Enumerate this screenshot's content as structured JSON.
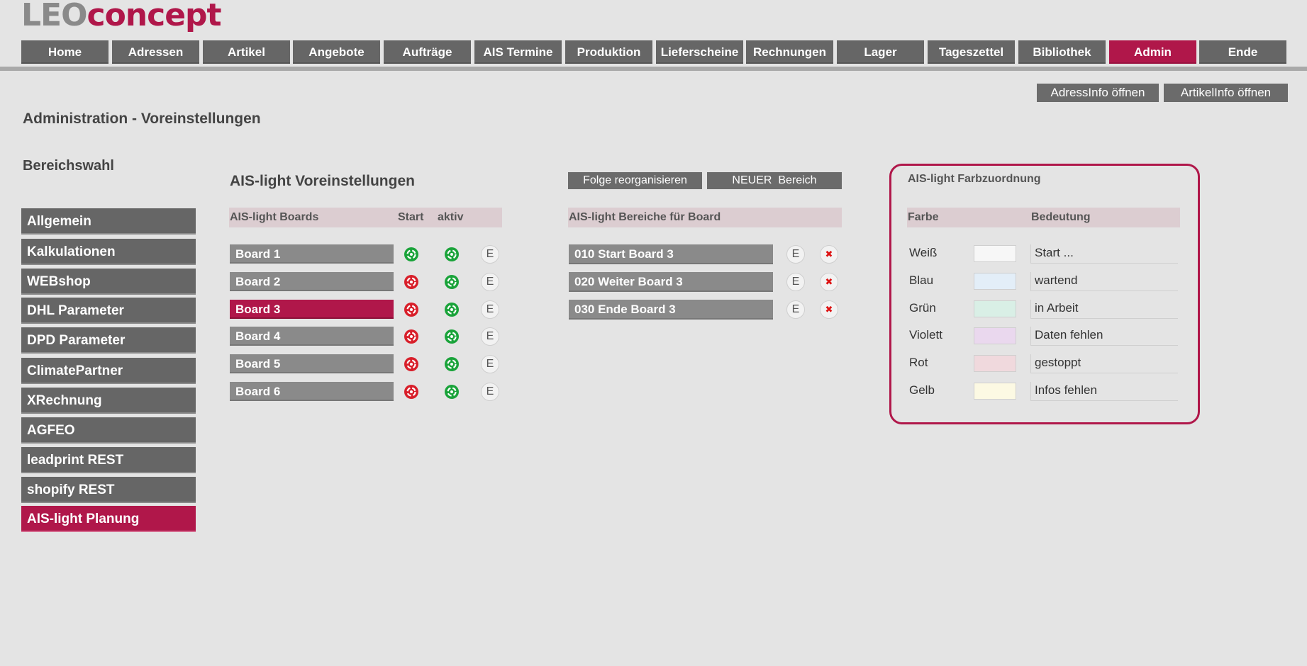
{
  "logo": {
    "part1": "LEO",
    "part2": "concept"
  },
  "nav": [
    {
      "label": "Home",
      "active": false
    },
    {
      "label": "Adressen",
      "active": false
    },
    {
      "label": "Artikel",
      "active": false
    },
    {
      "label": "Angebote",
      "active": false
    },
    {
      "label": "Aufträge",
      "active": false
    },
    {
      "label": "AIS Termine",
      "active": false
    },
    {
      "label": "Produktion",
      "active": false
    },
    {
      "label": "Lieferscheine",
      "active": false
    },
    {
      "label": "Rechnungen",
      "active": false
    },
    {
      "label": "Lager",
      "active": false
    },
    {
      "label": "Tageszettel",
      "active": false
    },
    {
      "label": "Bibliothek",
      "active": false
    },
    {
      "label": "Admin",
      "active": true
    },
    {
      "label": "Ende",
      "active": false
    }
  ],
  "info_buttons": {
    "adress": "AdressInfo öffnen",
    "artikel": "ArtikelInfo öffnen"
  },
  "page_title": "Administration - Voreinstellungen",
  "section_label": "Bereichswahl",
  "sidebar": [
    {
      "label": "Allgemein",
      "active": false
    },
    {
      "label": "Kalkulationen",
      "active": false
    },
    {
      "label": "WEBshop",
      "active": false
    },
    {
      "label": "DHL Parameter",
      "active": false
    },
    {
      "label": "DPD Parameter",
      "active": false
    },
    {
      "label": "ClimatePartner",
      "active": false
    },
    {
      "label": "XRechnung",
      "active": false
    },
    {
      "label": "AGFEO",
      "active": false
    },
    {
      "label": "leadprint REST",
      "active": false
    },
    {
      "label": "shopify REST",
      "active": false
    },
    {
      "label": "AIS-light Planung",
      "active": true
    }
  ],
  "boards_section": {
    "title": "AIS-light Voreinstellungen",
    "header": {
      "boards": "AIS-light Boards",
      "start": "Start",
      "aktiv": "aktiv"
    },
    "boards": [
      {
        "label": "Board 1",
        "start": "green",
        "active": "green",
        "selected": false
      },
      {
        "label": "Board 2",
        "start": "red",
        "active": "green",
        "selected": false
      },
      {
        "label": "Board 3",
        "start": "red",
        "active": "green",
        "selected": true
      },
      {
        "label": "Board 4",
        "start": "red",
        "active": "green",
        "selected": false
      },
      {
        "label": "Board 5",
        "start": "red",
        "active": "green",
        "selected": false
      },
      {
        "label": "Board 6",
        "start": "red",
        "active": "green",
        "selected": false
      }
    ],
    "edit_label": "E"
  },
  "areas_section": {
    "reorganize_button": "Folge reorganisieren",
    "new_button": "NEUER  Bereich",
    "header": "AIS-light Bereiche für Board",
    "areas": [
      "010 Start Board 3",
      "020 Weiter Board 3",
      "030 Ende Board 3"
    ],
    "edit_label": "E",
    "delete_icon": "close-icon"
  },
  "color_panel": {
    "title": "AIS-light Farbzuordnung",
    "header": {
      "color": "Farbe",
      "meaning": "Bedeutung"
    },
    "rows": [
      {
        "name": "Weiß",
        "color": "#f7f7f7",
        "meaning": "Start ..."
      },
      {
        "name": "Blau",
        "color": "#e3eef8",
        "meaning": "wartend"
      },
      {
        "name": "Grün",
        "color": "#d9efe6",
        "meaning": "in Arbeit"
      },
      {
        "name": "Violett",
        "color": "#ead8ee",
        "meaning": "Daten fehlen"
      },
      {
        "name": "Rot",
        "color": "#f0d9dd",
        "meaning": "gestoppt"
      },
      {
        "name": "Gelb",
        "color": "#fcf9e3",
        "meaning": "Infos fehlen"
      }
    ]
  },
  "colors": {
    "accent": "#b0174a",
    "button": "#666666",
    "board_button": "#8a8a8a",
    "green_icon": "#1aa33a",
    "red_icon": "#d81f2a"
  }
}
